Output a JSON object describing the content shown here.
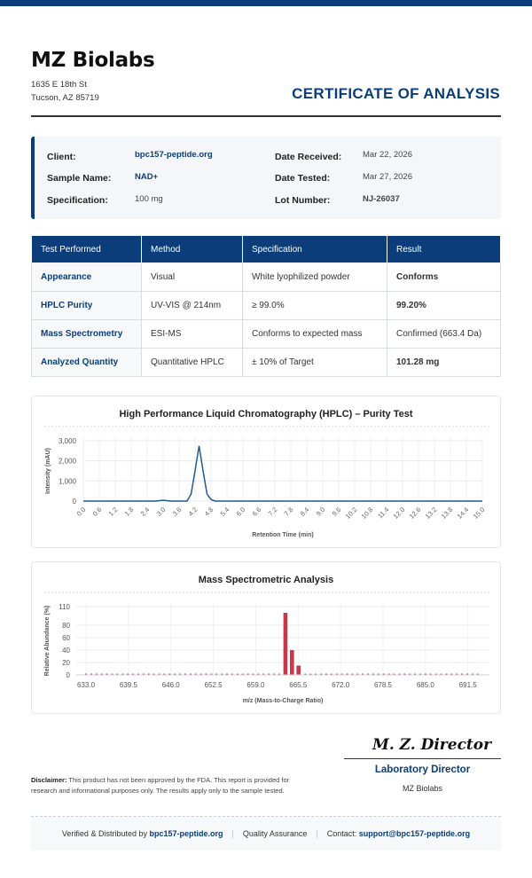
{
  "company": {
    "name": "MZ Biolabs",
    "address_line1": "1635 E 18th St",
    "address_line2": "Tucson, AZ 85719"
  },
  "doc_title": "CERTIFICATE OF ANALYSIS",
  "info": {
    "client_label": "Client:",
    "client": "bpc157-peptide.org",
    "sample_label": "Sample Name:",
    "sample": "NAD+",
    "spec_label": "Specification:",
    "spec": "100 mg",
    "received_label": "Date Received:",
    "received": "Mar 22, 2026",
    "tested_label": "Date Tested:",
    "tested": "Mar 27, 2026",
    "lot_label": "Lot Number:",
    "lot": "NJ-26037"
  },
  "results_table": {
    "headers": [
      "Test Performed",
      "Method",
      "Specification",
      "Result"
    ],
    "rows": [
      [
        "Appearance",
        "Visual",
        "White lyophilized powder",
        "Conforms"
      ],
      [
        "HPLC Purity",
        "UV-VIS @ 214nm",
        "≥ 99.0%",
        "99.20%"
      ],
      [
        "Mass Spectrometry",
        "ESI-MS",
        "Conforms to expected mass",
        "Confirmed (663.4 Da)"
      ],
      [
        "Analyzed Quantity",
        "Quantitative HPLC",
        "± 10% of Target",
        "101.28 mg"
      ]
    ]
  },
  "colors": {
    "brand": "#0b3d7a",
    "pass": "#2a9d3a",
    "hplc_line": "#1f5a96",
    "ms_bar": "#c8364a"
  },
  "chart_data": [
    {
      "type": "line",
      "title": "High Performance Liquid Chromatography (HPLC) – Purity Test",
      "xlabel": "Retention Time (min)",
      "ylabel": "Intensity (mAU)",
      "ylim": [
        0,
        3000
      ],
      "yticks": [
        "0",
        "1,000",
        "2,000",
        "3,000"
      ],
      "xticks": [
        "0.0",
        "0.6",
        "1.2",
        "1.8",
        "2.4",
        "3.0",
        "3.6",
        "4.2",
        "4.8",
        "5.4",
        "6.0",
        "6.6",
        "7.2",
        "7.8",
        "8.4",
        "9.0",
        "9.6",
        "10.2",
        "10.8",
        "11.4",
        "12.0",
        "12.6",
        "13.2",
        "13.8",
        "14.4",
        "15.0"
      ],
      "grid": true,
      "x": [
        0.0,
        2.7,
        3.0,
        3.3,
        3.9,
        4.05,
        4.2,
        4.35,
        4.5,
        4.65,
        4.8,
        4.95,
        5.1,
        15.0
      ],
      "y": [
        0,
        0,
        40,
        0,
        0,
        350,
        1500,
        2750,
        1500,
        350,
        80,
        0,
        0,
        0
      ]
    },
    {
      "type": "bar",
      "title": "Mass Spectrometric Analysis",
      "xlabel": "m/z (Mass-to-Charge Ratio)",
      "ylabel": "Relative Abundance (%)",
      "ylim": [
        0,
        110
      ],
      "yticks": [
        "0",
        "20",
        "40",
        "60",
        "80",
        "110"
      ],
      "xticks": [
        "633.0",
        "639.5",
        "646.0",
        "652.5",
        "659.0",
        "665.5",
        "672.0",
        "678.5",
        "685.0",
        "691.5"
      ],
      "grid": true,
      "x": [
        663.4,
        663.7,
        664.4,
        664.7,
        665.4,
        665.7
      ],
      "values": [
        100,
        100,
        40,
        40,
        15,
        15
      ],
      "baseline_value": 2
    }
  ],
  "signature": {
    "name": "M. Z. Director",
    "role": "Laboratory Director",
    "org": "MZ Biolabs"
  },
  "disclaimer": {
    "label": "Disclaimer:",
    "text": "This product has not been approved by the FDA. This report is provided for research and informational purposes only. The results apply only to the sample tested."
  },
  "footer": {
    "verified_prefix": "Verified & Distributed by",
    "verified_site": "bpc157-peptide.org",
    "qa": "Quality Assurance",
    "contact_prefix": "Contact:",
    "contact_email": "support@bpc157-peptide.org"
  }
}
